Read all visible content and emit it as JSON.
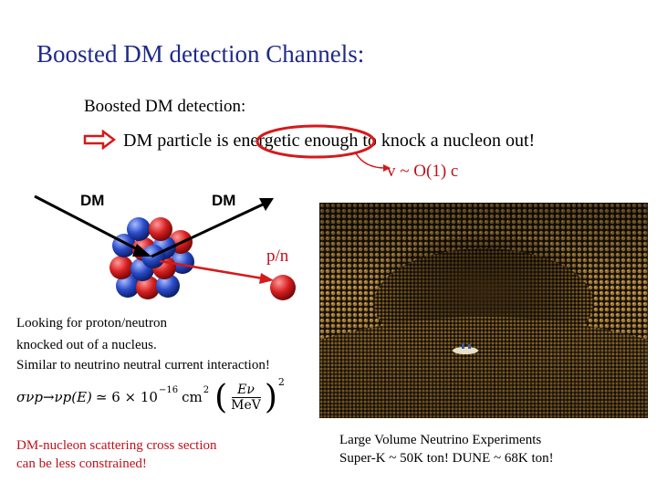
{
  "slide": {
    "title": "Boosted DM detection Channels:",
    "subtitle": "Boosted DM detection:",
    "bullet": "DM particle is energetic enough to knock a nucleon out!",
    "speed_note": "v ~ O(1) c",
    "diagram": {
      "incoming_label": "DM",
      "outgoing_label": "DM",
      "nucleon_label": "p/n"
    },
    "looking_for": [
      "Looking for proton/neutron",
      "knocked out of a nucleus.",
      "Similar to neutrino neutral current interaction!"
    ],
    "formula": {
      "lhs": "σνp→νp(E)",
      "approx": "≃ 6 × 10",
      "exponent": "−16",
      "unit": "cm",
      "unit_exp": "2",
      "ratio_num": "Eν",
      "ratio_den": "MeV",
      "power": "2"
    },
    "scattering_note": [
      "DM-nucleon scattering cross section",
      "can be less constrained!"
    ],
    "experiments_note": [
      "Large Volume Neutrino Experiments",
      "Super-K ~ 50K ton! DUNE ~ 68K ton!"
    ],
    "colors": {
      "title": "#1f2a8a",
      "highlight_red": "#c0101a",
      "proton": "#d62020",
      "neutron": "#2a4bc8"
    }
  }
}
